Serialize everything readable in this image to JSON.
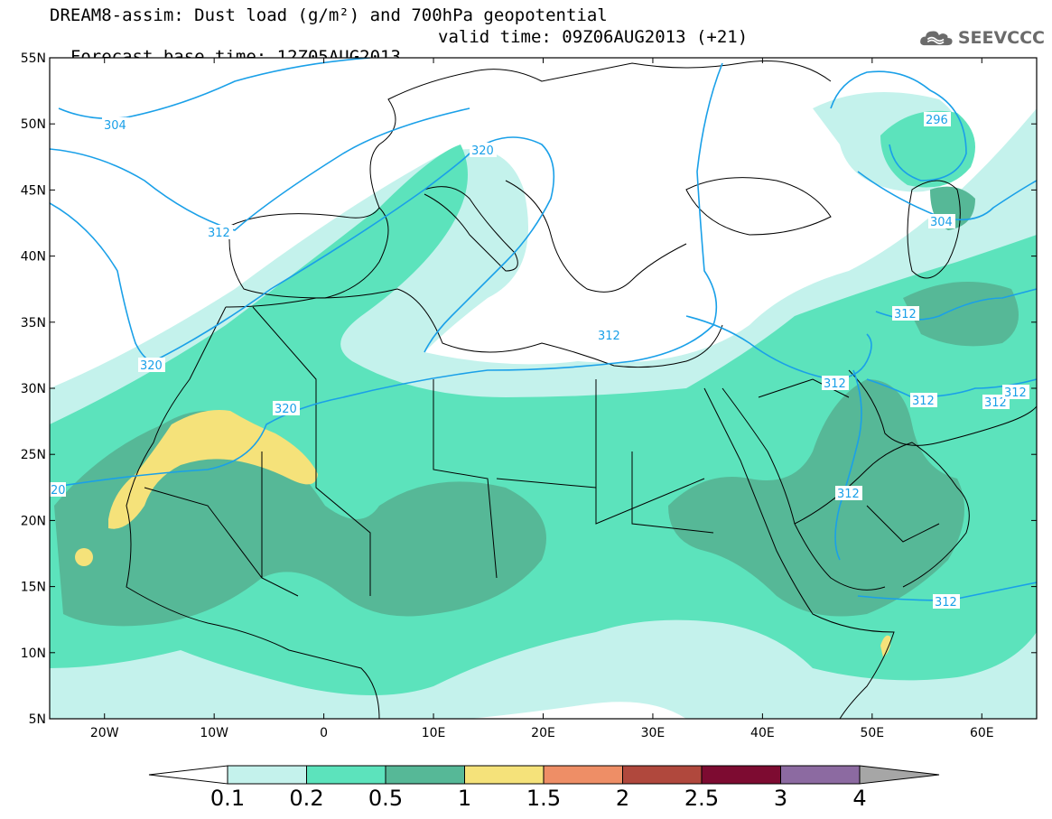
{
  "title": {
    "line1": "DREAM8-assim: Dust load (g/m²) and 700hPa geopotential",
    "line2_base": "Forecast base time: 12Z05AUG2013",
    "line2_valid": "valid time: 09Z06AUG2013 (+21)"
  },
  "logo": {
    "text": "SEEVCCC",
    "icon": "cloud-icon"
  },
  "map": {
    "lon_range": [
      -25,
      65
    ],
    "lat_range": [
      5,
      55
    ],
    "lat_ticks": [
      "55N",
      "50N",
      "45N",
      "40N",
      "35N",
      "30N",
      "25N",
      "20N",
      "15N",
      "10N",
      "5N"
    ],
    "lon_ticks": [
      "20W",
      "10W",
      "0",
      "10E",
      "20E",
      "30E",
      "40E",
      "50E",
      "60E"
    ],
    "contour_labels": [
      "304",
      "312",
      "320",
      "320",
      "320",
      "312",
      "312",
      "296",
      "304",
      "312",
      "312",
      "312",
      "312",
      "312",
      "312",
      "20"
    ]
  },
  "colorbar": {
    "labels": [
      "0.1",
      "0.2",
      "0.5",
      "1",
      "1.5",
      "2",
      "2.5",
      "3",
      "4"
    ],
    "colors": [
      "#c4f2ec",
      "#5ce3bc",
      "#56b897",
      "#f5e27a",
      "#ee8e66",
      "#b0483d",
      "#7d0b31",
      "#8c6aa1",
      "#a6a6a6"
    ]
  },
  "colors": {
    "dust_low": "#c4f2ec",
    "dust_mid": "#5ce3bc",
    "dust_high": "#56b897",
    "dust_peak": "#f5e27a",
    "contour": "#1aa0e8",
    "border": "#000000"
  }
}
